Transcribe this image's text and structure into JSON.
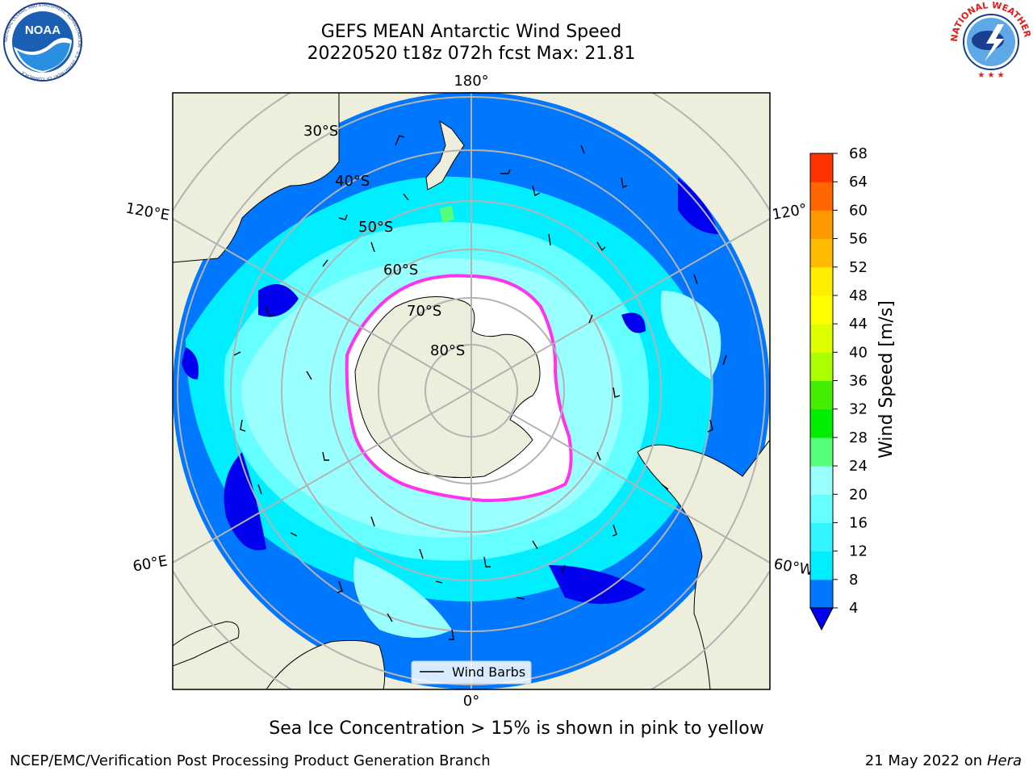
{
  "header": {
    "title_line1": "GEFS MEAN Antarctic Wind Speed",
    "title_line2": "20220520 t18z 072h fcst   Max: 21.81"
  },
  "logos": {
    "left": {
      "name": "NOAA",
      "ring_text": "NATIONAL OCEANIC AND ATMOSPHERIC ADMINISTRATION · U.S. DEPARTMENT OF COMMERCE"
    },
    "right": {
      "name": "National Weather Service",
      "ring_text": "NATIONAL WEATHER SERVICE"
    }
  },
  "map": {
    "projection": "south-polar-stereographic",
    "longitude_labels": {
      "top": "180°",
      "bottom": "0°",
      "upper_left": "120°E",
      "lower_left": "60°E",
      "upper_right": "120°",
      "lower_right": "60°W"
    },
    "latitude_labels": [
      "30°S",
      "40°S",
      "50°S",
      "60°S",
      "70°S",
      "80°S"
    ],
    "legend_label": "Wind Barbs",
    "colors": {
      "land": "#eeeedd",
      "ice": "#ffffff",
      "ice_edge": "#ff33ee",
      "grid": "#b3b3b3"
    }
  },
  "colorbar": {
    "label": "Wind Speed [m/s]",
    "ticks": [
      "4",
      "8",
      "12",
      "16",
      "20",
      "24",
      "28",
      "32",
      "36",
      "40",
      "44",
      "48",
      "52",
      "56",
      "60",
      "64",
      "68"
    ],
    "colors": [
      "#0077ff",
      "#00eeff",
      "#33f5ff",
      "#66ffff",
      "#99ffff",
      "#55ff77",
      "#00ee00",
      "#44ee00",
      "#aaff00",
      "#ddff00",
      "#ffff00",
      "#ffee00",
      "#ffbb00",
      "#ff9900",
      "#ff6600",
      "#ff3300",
      "#ff0000"
    ],
    "under_color": "#0000ee",
    "extend": "min"
  },
  "caption": "Sea Ice Concentration > 15% is shown in pink to yellow",
  "footer": {
    "left": "NCEP/EMC/Verification Post Processing Product Generation Branch",
    "date": "21 May 2022 on",
    "host": "Hera"
  }
}
